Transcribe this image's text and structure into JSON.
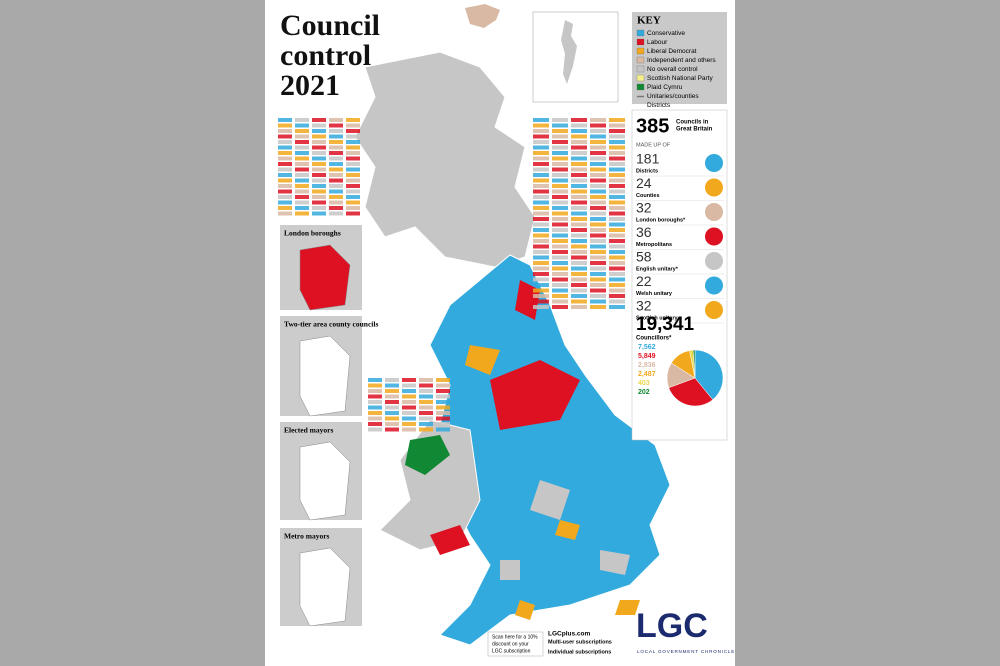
{
  "title": [
    "Council",
    "control",
    "2021"
  ],
  "key": {
    "heading": "KEY",
    "items": [
      {
        "label": "Conservative",
        "color": "#33aadd"
      },
      {
        "label": "Labour",
        "color": "#dd1122"
      },
      {
        "label": "Liberal Democrat",
        "color": "#f2a81d"
      },
      {
        "label": "Independent and others",
        "color": "#d9b9a3"
      },
      {
        "label": "No overall control",
        "color": "#c6c6c6"
      },
      {
        "label": "Scottish National Party",
        "color": "#f5ef8a"
      },
      {
        "label": "Plaid Cymru",
        "color": "#118833"
      }
    ],
    "lines": [
      "Unitaries/counties",
      "Districts"
    ]
  },
  "summary": {
    "count": "385",
    "label": [
      "Councils in",
      "Great Britain"
    ],
    "made_up_of": "MADE UP OF"
  },
  "types": [
    {
      "count": "181",
      "label": "Districts"
    },
    {
      "count": "24",
      "label": "Counties"
    },
    {
      "count": "32",
      "label": "London boroughs*"
    },
    {
      "count": "36",
      "label": "Metropolitans"
    },
    {
      "count": "58",
      "label": "English unitary*"
    },
    {
      "count": "22",
      "label": "Welsh unitary"
    },
    {
      "count": "32",
      "label": "Scottish unitary"
    }
  ],
  "councillors": {
    "total": "19,341",
    "label": "Councillors*",
    "breakdown": [
      {
        "value": 7562,
        "label": "7,562",
        "color": "#33aadd"
      },
      {
        "value": 5849,
        "label": "5,849",
        "color": "#dd1122"
      },
      {
        "value": 2836,
        "label": "2,836",
        "color": "#d9b9a3"
      },
      {
        "value": 2487,
        "label": "2,487",
        "color": "#f2a81d"
      },
      {
        "value": 403,
        "label": "403",
        "color": "#e8d84a"
      },
      {
        "value": 202,
        "label": "202",
        "color": "#118833"
      }
    ]
  },
  "insets": [
    "London boroughs",
    "Two-tier area county councils",
    "Elected mayors",
    "Metro mayors"
  ],
  "footer": {
    "site": "LGCplus.com",
    "lines": [
      "Multi-user subscriptions",
      "Individual subscriptions"
    ],
    "scan": [
      "Scan here for a 10%",
      "discount on your",
      "LGC subscription"
    ],
    "logo": "LGC",
    "logo_sub": "LOCAL GOVERNMENT CHRONICLE"
  }
}
